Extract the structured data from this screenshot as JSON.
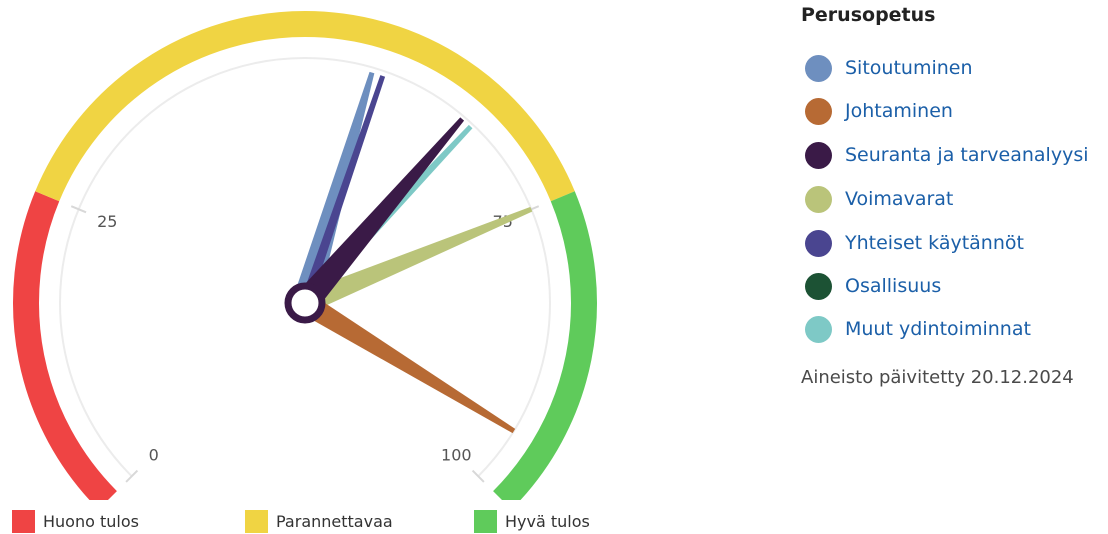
{
  "chart_data": {
    "type": "gauge",
    "title": "",
    "range": [
      0,
      100
    ],
    "ticks": [
      {
        "value": 0,
        "label": "0"
      },
      {
        "value": 25,
        "label": "25"
      },
      {
        "value": 75,
        "label": "75"
      },
      {
        "value": 100,
        "label": "100"
      }
    ],
    "bands": [
      {
        "name": "Huono tulos",
        "from": 0,
        "to": 25,
        "color": "#ef4444"
      },
      {
        "name": "Parannettavaa",
        "from": 25,
        "to": 75,
        "color": "#f0d443"
      },
      {
        "name": "Hyvä tulos",
        "from": 75,
        "to": 100,
        "color": "#5fcb5b"
      }
    ],
    "series": [
      {
        "name": "Sitoutuminen",
        "value": 56,
        "color": "#6e8fbf"
      },
      {
        "name": "Johtaminen",
        "value": 95,
        "color": "#b76a34"
      },
      {
        "name": "Seuranta ja tarveanalyysi",
        "value": 65,
        "color": "#3a1a47"
      },
      {
        "name": "Voimavarat",
        "value": 75,
        "color": "#bac47a"
      },
      {
        "name": "Yhteiset käytännöt",
        "value": 57,
        "color": "#4a4590"
      },
      {
        "name": "Osallisuus",
        "value": null,
        "color": "#1c5234"
      },
      {
        "name": "Muut ydintoiminnat",
        "value": 66,
        "color": "#7ec9c6"
      }
    ]
  },
  "legend": {
    "title": "Perusopetus",
    "items": [
      {
        "label": "Sitoutuminen",
        "color": "#6e8fbf"
      },
      {
        "label": "Johtaminen",
        "color": "#b76a34"
      },
      {
        "label": "Seuranta ja tarveanalyysi",
        "color": "#3a1a47"
      },
      {
        "label": "Voimavarat",
        "color": "#bac47a"
      },
      {
        "label": "Yhteiset käytännöt",
        "color": "#4a4590"
      },
      {
        "label": "Osallisuus",
        "color": "#1c5234"
      },
      {
        "label": "Muut ydintoiminnat",
        "color": "#7ec9c6"
      }
    ],
    "updated": "Aineisto päivitetty 20.12.2024"
  },
  "zone_legend": [
    {
      "label": "Huono tulos",
      "color": "#ef4444"
    },
    {
      "label": "Parannettavaa",
      "color": "#f0d443"
    },
    {
      "label": "Hyvä tulos",
      "color": "#5fcb5b"
    }
  ]
}
